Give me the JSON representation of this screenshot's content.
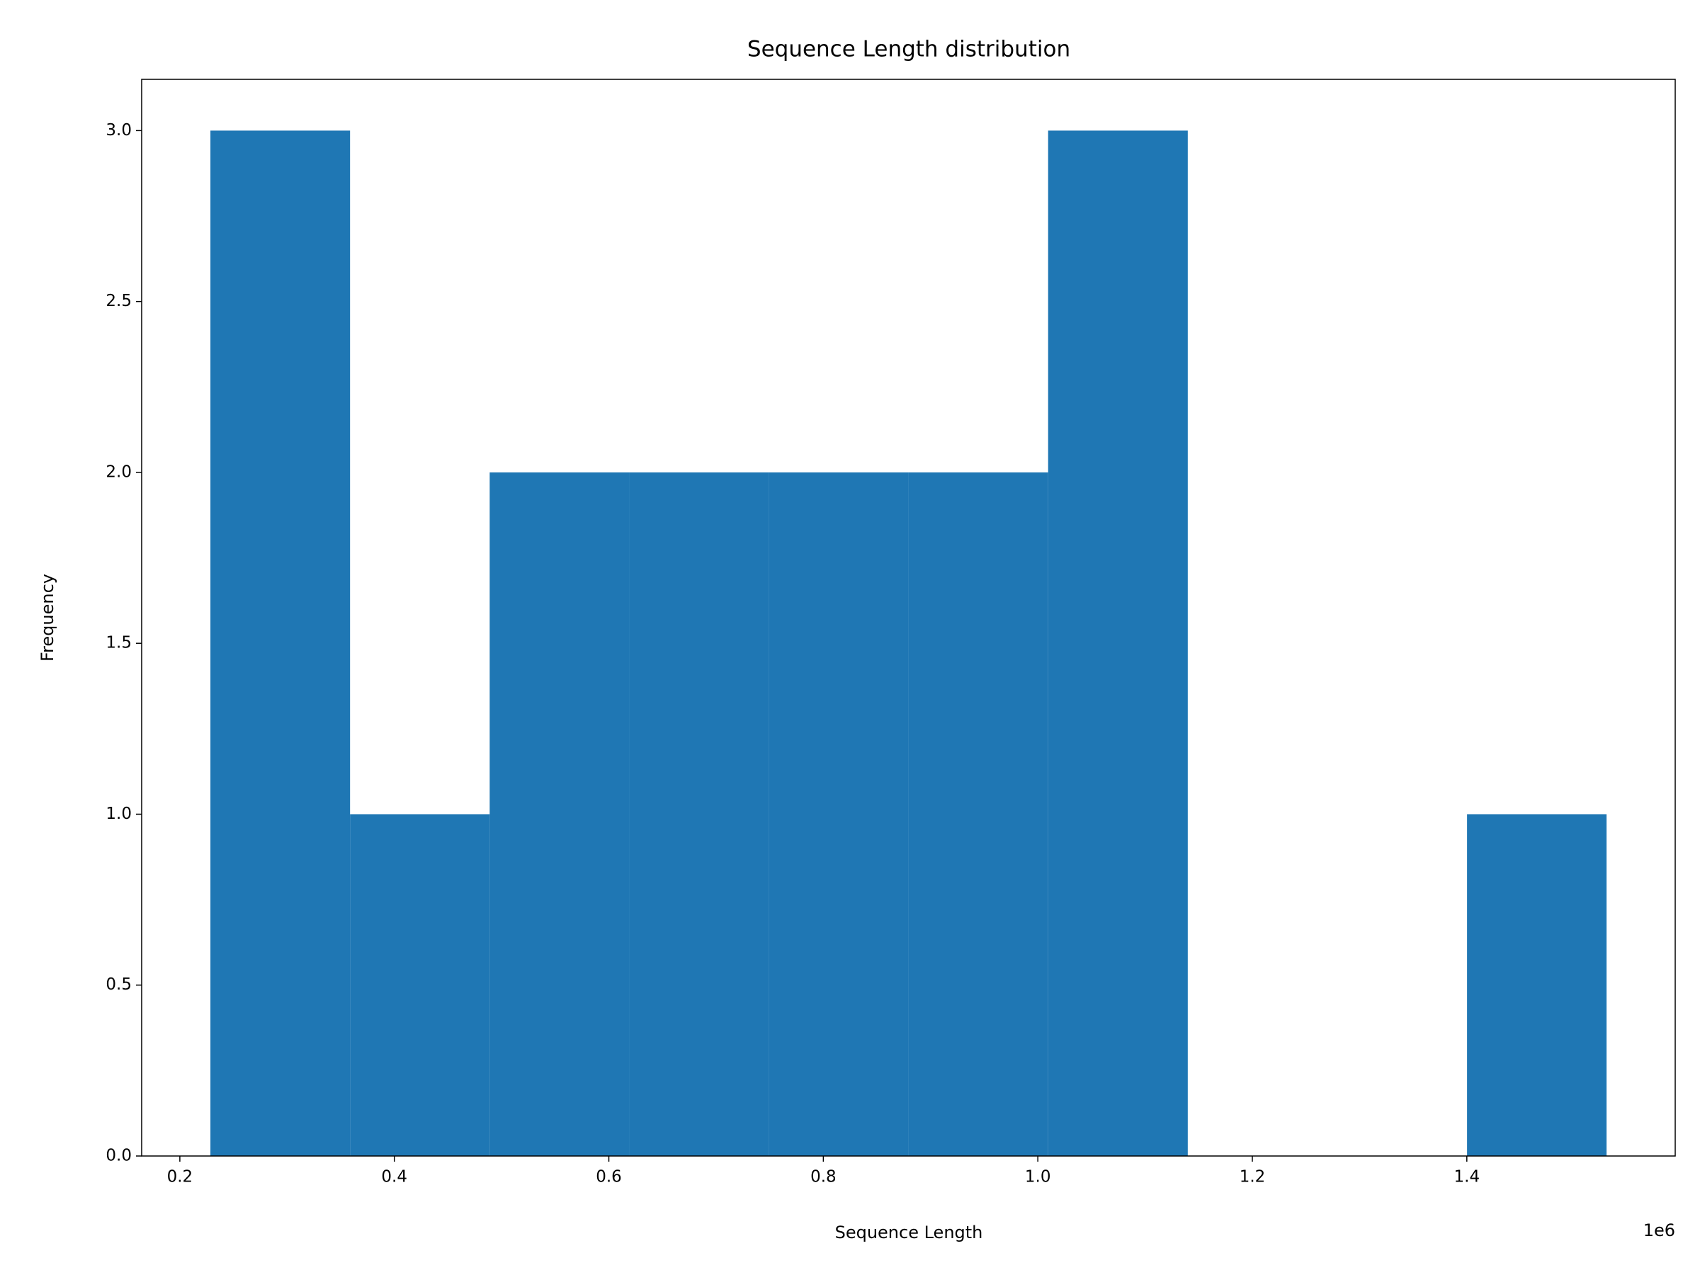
{
  "chart_data": {
    "type": "histogram",
    "title": "Sequence Length distribution",
    "x_label": "Sequence Length",
    "y_label": "Frequency",
    "x_offset_label": "1e6",
    "bins": [
      0.2285,
      0.3587,
      0.4889,
      0.6191,
      0.7493,
      0.8794,
      1.0096,
      1.1398,
      1.27,
      1.4002,
      1.5303
    ],
    "values": [
      3,
      1,
      2,
      2,
      2,
      2,
      3,
      0,
      0,
      1
    ],
    "color": "#1f77b4",
    "xlim": [
      0.1644,
      1.5943
    ],
    "ylim": [
      0,
      3.15
    ],
    "xticks": [
      0.2,
      0.4,
      0.6,
      0.8,
      {
        "value": 1.0,
        "label": "1.0"
      },
      1.2,
      1.4
    ],
    "yticks": [
      {
        "value": 0,
        "label": "0.0"
      },
      0.5,
      {
        "value": 1,
        "label": "1.0"
      },
      1.5,
      {
        "value": 2,
        "label": "2.0"
      },
      2.5,
      {
        "value": 3,
        "label": "3.0"
      }
    ],
    "grid": false
  }
}
